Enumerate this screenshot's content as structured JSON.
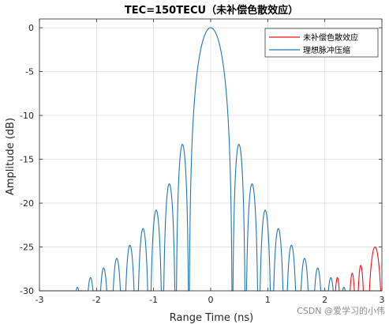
{
  "chart_data": {
    "type": "line",
    "title": "TEC=150TECU（未补偿色散效应）",
    "xlabel": "Range Time (ns)",
    "ylabel": "Amplitude (dB)",
    "xlim": [
      -3,
      3
    ],
    "ylim": [
      -30,
      1
    ],
    "xticks": [
      "-3",
      "-2",
      "-1",
      "0",
      "1",
      "2",
      "3"
    ],
    "yticks": [
      "0",
      "-5",
      "-10",
      "-15",
      "-20",
      "-25",
      "-30"
    ],
    "grid": true,
    "legend_position": "top-right",
    "series": [
      {
        "name": "未补偿色散效应",
        "color": "#e8141a",
        "visible_range_ns": [
          2.1,
          3.0
        ],
        "sample_peaks": [
          [
            2.22,
            -28.5
          ],
          [
            2.48,
            -28.0
          ],
          [
            2.63,
            -27.1
          ],
          [
            2.88,
            -25.0
          ]
        ]
      },
      {
        "name": "理想脉冲压缩",
        "color": "#1f77b4",
        "main_lobe_peak": 0,
        "main_lobe_null_ns": 0.38,
        "sidelobe_spacing_ns": 0.23,
        "sidelobe_peaks_db": [
          -13.3,
          -17.8,
          -20.8,
          -22.9,
          -24.8,
          -26.3,
          -27.4,
          -28.5,
          -29.6
        ]
      }
    ]
  },
  "watermark": "CSDN @爱学习的小伟"
}
